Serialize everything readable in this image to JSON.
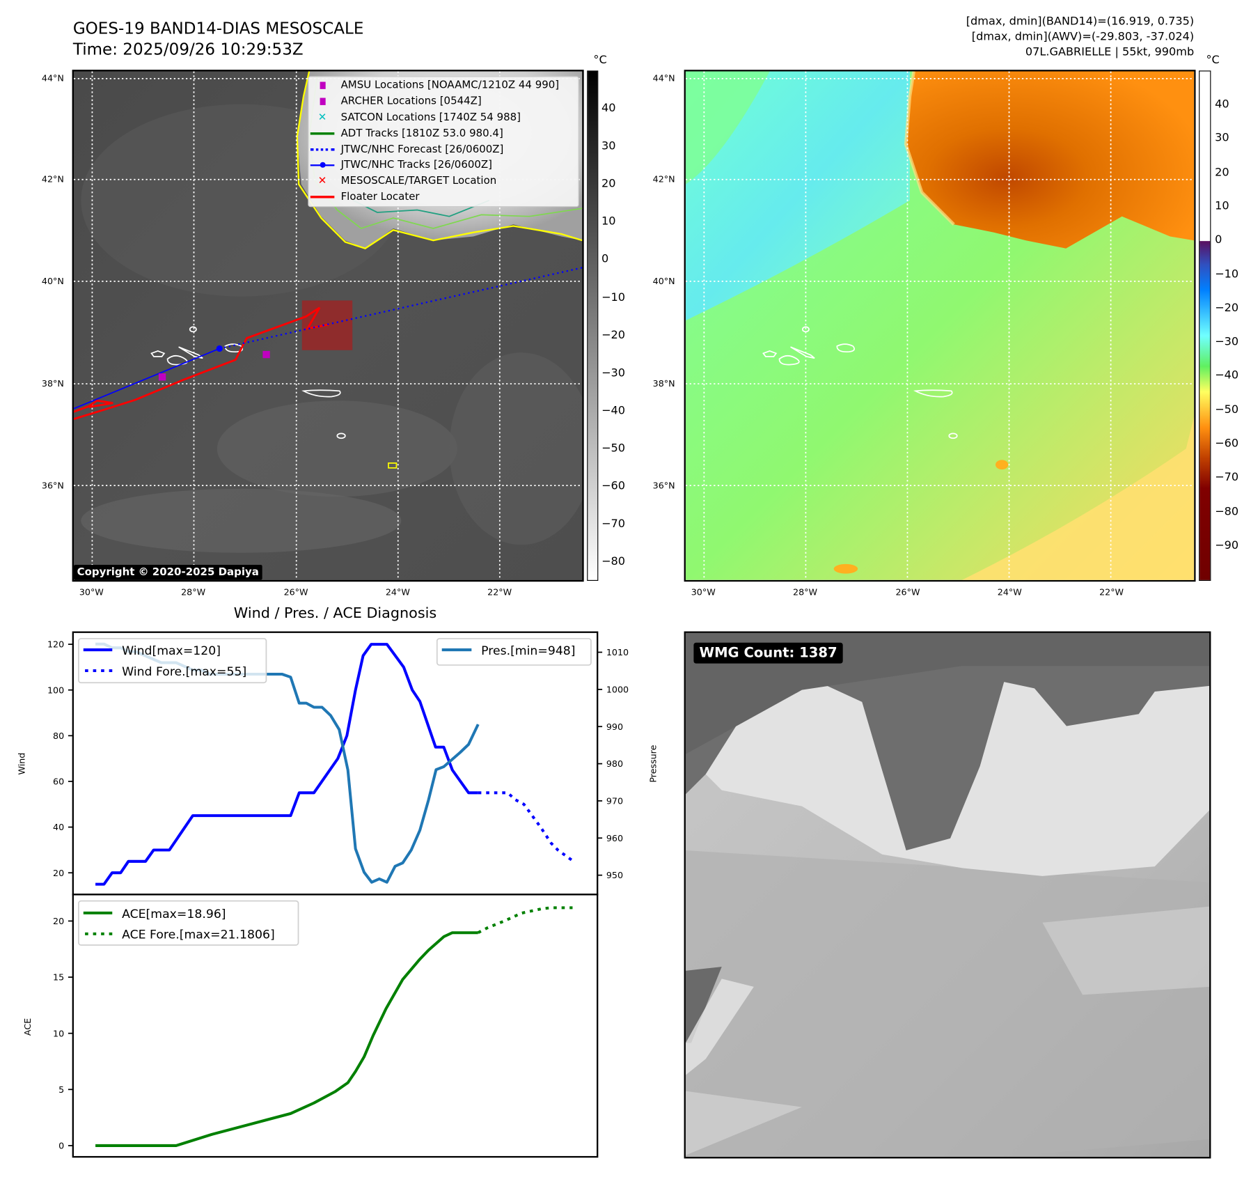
{
  "header": {
    "title": "GOES-19 BAND14-DIAS MESOSCALE",
    "time": "Time: 2025/09/26 10:29:53Z",
    "info_line1": "[dmax, dmin](BAND14)=(16.919, 0.735)",
    "info_line2": "[dmax, dmin](AWV)=(-29.803, -37.024)",
    "info_line3": "07L.GABRIELLE | 55kt, 990mb"
  },
  "maps": {
    "lat_labels": [
      "44°N",
      "42°N",
      "40°N",
      "38°N",
      "36°N"
    ],
    "lon_labels": [
      "30°W",
      "28°W",
      "26°W",
      "24°W",
      "22°W"
    ],
    "unit": "°C",
    "left_colorbar_ticks": [
      "40",
      "30",
      "20",
      "10",
      "0",
      "−10",
      "−20",
      "−30",
      "−40",
      "−50",
      "−60",
      "−70",
      "−80"
    ],
    "right_colorbar_ticks": [
      "40",
      "30",
      "20",
      "10",
      "0",
      "−10",
      "−20",
      "−30",
      "−40",
      "−50",
      "−60",
      "−70",
      "−80",
      "−90"
    ],
    "copyright": "Copyright © 2020-2025 Dapiya",
    "legend": [
      {
        "label": "AMSU Locations [NOAAMC/1210Z 44 990]",
        "icon": "square-marker",
        "color": "#c000c0"
      },
      {
        "label": "ARCHER Locations [0544Z]",
        "icon": "square-marker",
        "color": "#c000c0"
      },
      {
        "label": "SATCON Locations [1740Z 54 988]",
        "icon": "x-marker",
        "color": "#00bfbf"
      },
      {
        "label": "ADT Tracks [1810Z 53.0 980.4]",
        "icon": "solid-line",
        "color": "#008000"
      },
      {
        "label": "JTWC/NHC Forecast [26/0600Z]",
        "icon": "dotted-line",
        "color": "#0000ff"
      },
      {
        "label": "JTWC/NHC Tracks [26/0600Z]",
        "icon": "line-dot",
        "color": "#0000ff"
      },
      {
        "label": "MESOSCALE/TARGET Location",
        "icon": "x-marker",
        "color": "#ff0000"
      },
      {
        "label": "Floater Locater",
        "icon": "solid-line",
        "color": "#ff0000"
      }
    ]
  },
  "wmg": {
    "label": "WMG Count: 1387"
  },
  "chart_data": [
    {
      "type": "line",
      "title": "Wind / Pres. / ACE Diagnosis",
      "ylabel": "Wind",
      "y2label": "Pressure",
      "ylim": [
        10.5,
        125.3
      ],
      "y2lim": [
        944.8,
        1015.4
      ],
      "xlim": [
        -4.7,
        105.4
      ],
      "yticks": [
        20,
        40,
        60,
        80,
        100,
        120
      ],
      "y2ticks": [
        950,
        960,
        970,
        980,
        990,
        1000,
        1010
      ],
      "series": [
        {
          "name": "Wind[max=120]",
          "color": "#0000ff",
          "style": "solid",
          "x": [
            0,
            1.8,
            3.5,
            5.3,
            6.9,
            10.5,
            12.2,
            15.5,
            20.4,
            40.9,
            42.7,
            45.8,
            50.8,
            52.7,
            54.5,
            56.1,
            57.8,
            61.1,
            64.6,
            66.4,
            68.0,
            71.3,
            73.0,
            74.8,
            78.2,
            80.2
          ],
          "y": [
            15,
            15,
            20,
            20,
            25,
            25,
            30,
            30,
            45,
            45,
            55,
            55,
            70,
            80,
            100,
            115,
            120,
            120,
            110,
            100,
            95,
            75,
            75,
            65,
            55,
            55
          ]
        },
        {
          "name": "Wind Fore.[max=55]",
          "color": "#0000ff",
          "style": "dotted",
          "x": [
            80.2,
            86.4,
            88.0,
            89.8,
            93.3,
            95.5,
            96.9,
            100.2
          ],
          "y": [
            55,
            55,
            52,
            50,
            40,
            33,
            30,
            25
          ]
        },
        {
          "name": "Pres.[min=948]",
          "color": "#1f77b4",
          "style": "solid",
          "axis": "right",
          "x": [
            0,
            1.8,
            3.5,
            5.3,
            6.9,
            8.4,
            13.8,
            16.9,
            20.4,
            22.2,
            24.0,
            39.1,
            40.9,
            42.7,
            44.2,
            45.8,
            47.5,
            49.3,
            51.1,
            52.9,
            54.5,
            56.3,
            57.9,
            59.5,
            61.1,
            62.8,
            64.4,
            66.2,
            68.0,
            69.8,
            71.4,
            73.0,
            76.4,
            78.2,
            80.2
          ],
          "y": [
            1012.2,
            1012.2,
            1011.2,
            1011.2,
            1010.2,
            1010.2,
            1007.2,
            1007.2,
            1005.2,
            1005.2,
            1004.1,
            1004.1,
            1003.3,
            996.3,
            996.3,
            995.2,
            995.2,
            993,
            989.2,
            978.3,
            957.1,
            950.8,
            948.1,
            949,
            948.1,
            952.4,
            953.3,
            956.8,
            962.1,
            970.2,
            978.4,
            979.2,
            983,
            985.2,
            990.6
          ]
        }
      ]
    },
    {
      "type": "line",
      "ylabel": "ACE",
      "ylim": [
        -1,
        22.36
      ],
      "xlim": [
        -4.7,
        105.4
      ],
      "yticks": [
        0,
        5,
        10,
        15,
        20
      ],
      "series": [
        {
          "name": "ACE[max=18.96]",
          "color": "#008000",
          "style": "solid",
          "x": [
            0,
            16.9,
            24.4,
            32.4,
            40.9,
            45.8,
            50.2,
            52.9,
            54.5,
            56.3,
            58.2,
            60.9,
            64.4,
            68.0,
            69.8,
            73.0,
            74.8,
            80.2
          ],
          "y": [
            0,
            0,
            1,
            1.9,
            2.86,
            3.8,
            4.8,
            5.6,
            6.6,
            7.9,
            9.8,
            12.2,
            14.8,
            16.6,
            17.4,
            18.6,
            18.96,
            18.96
          ]
        },
        {
          "name": "ACE Fore.[max=21.1806]",
          "color": "#008000",
          "style": "dotted",
          "x": [
            80.2,
            82.2,
            85.7,
            89.3,
            93.7,
            95.5,
            100
          ],
          "y": [
            18.96,
            19.4,
            20,
            20.7,
            21.1,
            21.18,
            21.18
          ]
        }
      ]
    }
  ]
}
